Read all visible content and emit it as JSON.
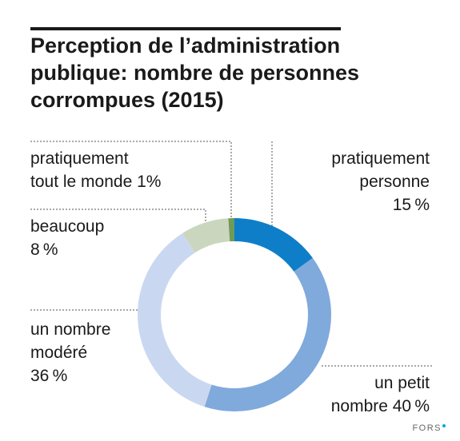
{
  "title_lines": [
    "Perception de l’administration",
    "publique: nombre de personnes",
    "corrompues (2015)"
  ],
  "logo_text": "FORS",
  "chart_data": {
    "type": "pie",
    "donut": true,
    "title": "Perception de l’administration publique: nombre de personnes corrompues (2015)",
    "unit": "%",
    "slices": [
      {
        "label_lines": [
          "pratiquement",
          "personne",
          "15 %"
        ],
        "category": "pratiquement personne",
        "value": 15,
        "color": "#0f7ec8"
      },
      {
        "label_lines": [
          "un petit",
          "nombre 40 %"
        ],
        "category": "un petit nombre",
        "value": 40,
        "color": "#80a9dc"
      },
      {
        "label_lines": [
          "un nombre",
          "modéré",
          "36 %"
        ],
        "category": "un nombre modéré",
        "value": 36,
        "color": "#c9d8f0"
      },
      {
        "label_lines": [
          "beaucoup",
          "8 %"
        ],
        "category": "beaucoup",
        "value": 8,
        "color": "#cbd6bf"
      },
      {
        "label_lines": [
          "pratiquement",
          "tout le monde 1%"
        ],
        "category": "pratiquement tout le monde",
        "value": 1,
        "color": "#6f9a58"
      }
    ]
  }
}
